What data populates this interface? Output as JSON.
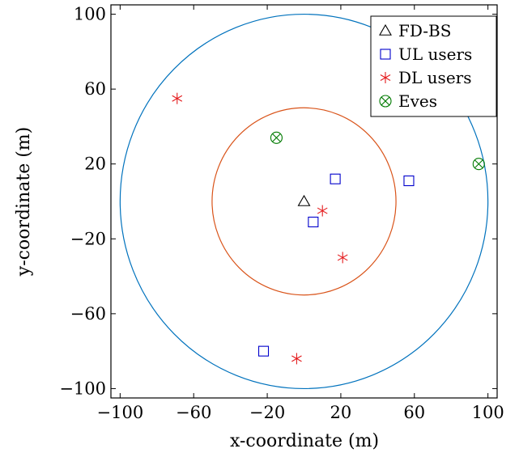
{
  "chart_data": {
    "type": "scatter",
    "title": "",
    "xlabel": "x-coordinate (m)",
    "ylabel": "y-coordinate (m)",
    "xlim": [
      -105,
      105
    ],
    "ylim": [
      -105,
      105
    ],
    "xticks": [
      -100,
      -60,
      -20,
      20,
      60,
      100
    ],
    "yticks": [
      -100,
      -60,
      -20,
      20,
      60,
      100
    ],
    "xtick_labels": [
      "−100",
      "−60",
      "−20",
      "20",
      "60",
      "100"
    ],
    "ytick_labels": [
      "−100",
      "−60",
      "−20",
      "20",
      "60",
      "100"
    ],
    "grid": false,
    "legend_position": "top-right",
    "circles": [
      {
        "center": [
          0,
          0
        ],
        "radius": 100,
        "color": "#0072BD"
      },
      {
        "center": [
          0,
          0
        ],
        "radius": 50,
        "color": "#D95319"
      }
    ],
    "series": [
      {
        "name": "FD-BS",
        "marker": "triangle",
        "color": "#000000",
        "points": [
          [
            0,
            0
          ]
        ]
      },
      {
        "name": "UL users",
        "marker": "square",
        "color": "#0000CC",
        "points": [
          [
            17,
            12
          ],
          [
            57,
            11
          ],
          [
            5,
            -11
          ],
          [
            -22,
            -80
          ]
        ]
      },
      {
        "name": "DL users",
        "marker": "asterisk",
        "color": "#E41A1C",
        "points": [
          [
            -69,
            55
          ],
          [
            10,
            -5
          ],
          [
            21,
            -30
          ],
          [
            -4,
            -84
          ]
        ]
      },
      {
        "name": "Eves",
        "marker": "otimes",
        "color": "#007A00",
        "points": [
          [
            -15,
            34
          ],
          [
            95,
            20
          ]
        ]
      }
    ]
  }
}
